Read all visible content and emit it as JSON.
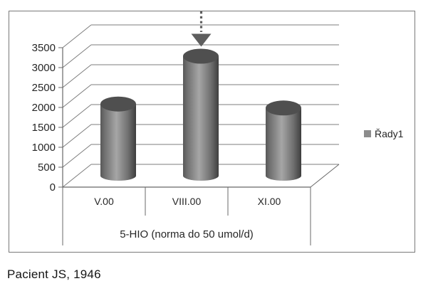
{
  "caption": "Pacient JS, 1946",
  "chart_data": {
    "type": "bar",
    "style": "3d-cylinder",
    "title": "",
    "categories": [
      "V.00",
      "VIII.00",
      "XI.00"
    ],
    "series": [
      {
        "name": "Řady1",
        "values": [
          1800,
          3000,
          1700
        ]
      }
    ],
    "xlabel": "5-HIO (norma do 50 umol/d)",
    "ylabel": "",
    "ylim": [
      0,
      3500
    ],
    "ytick_step": 500,
    "grid": true,
    "legend_position": "right-middle",
    "annotation": {
      "type": "dotted-arrow-down",
      "target_category": "VIII.00"
    }
  },
  "colors": {
    "background": "#ffffff",
    "frame_border": "#7a7a7a",
    "grid": "#7d7d7d",
    "axis": "#686868",
    "text": "#262626",
    "caption_text": "#141414",
    "arrow": "#5e5e5e",
    "legend_marker": "#8c8c8c",
    "cylinder_edge_dark": "#3e3e3e",
    "cylinder_light": "#a6a6a6",
    "cylinder_top": "#4f4f4f"
  }
}
